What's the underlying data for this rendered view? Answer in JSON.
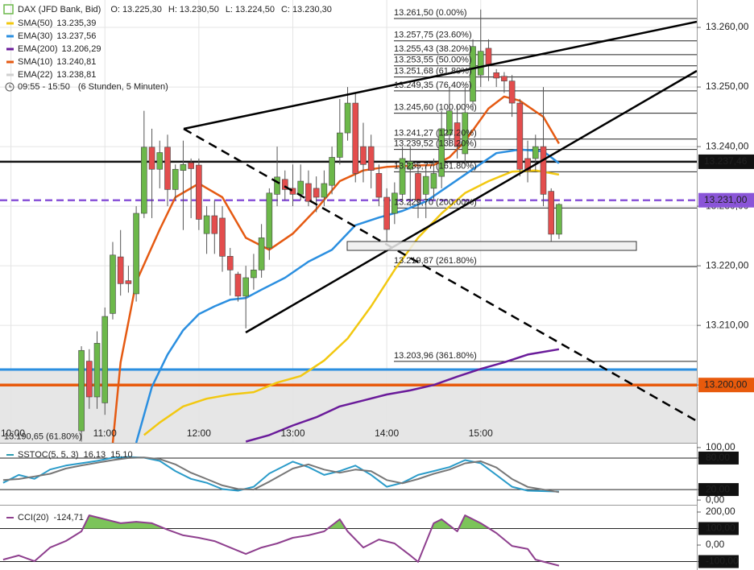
{
  "chart_data": [
    {
      "type": "candlestick",
      "title": "DAX (JFD Bank, Bid)",
      "quote": [
        {
          "name": "O:",
          "value": 13225.3,
          "label": "13.225,30"
        },
        {
          "name": "H:",
          "value": 13230.5,
          "label": "13.230,50"
        },
        {
          "name": "L:",
          "value": 13224.5,
          "label": "13.224,50"
        },
        {
          "name": "C:",
          "value": 13230.3,
          "label": "13.230,30"
        }
      ],
      "period": "09:55 - 15:50",
      "period_note": "(6 Stunden, 5 Minuten)",
      "up_color": "#6cb84a",
      "down_color": "#e34d4d",
      "xlim": [
        "09:53",
        "17:18"
      ],
      "xticks": [
        "10:00",
        "11:00",
        "12:00",
        "13:00",
        "14:00",
        "15:00"
      ],
      "ylim": [
        13190.3,
        13264.6
      ],
      "yticks": [
        {
          "value": 13200,
          "label": "13.200,00"
        },
        {
          "value": 13210,
          "label": "13.210,00"
        },
        {
          "value": 13220,
          "label": "13.220,00"
        },
        {
          "value": 13230,
          "label": "13.230,00"
        },
        {
          "value": 13240,
          "label": "13.240,00"
        },
        {
          "value": 13250,
          "label": "13.250,00"
        },
        {
          "value": 13260,
          "label": "13.260,00"
        }
      ],
      "grid": true,
      "x": [
        "10:45",
        "10:50",
        "10:55",
        "11:00",
        "11:05",
        "11:10",
        "11:15",
        "11:20",
        "11:25",
        "11:30",
        "11:35",
        "11:40",
        "11:45",
        "11:50",
        "11:55",
        "12:00",
        "12:05",
        "12:10",
        "12:15",
        "12:20",
        "12:25",
        "12:30",
        "12:35",
        "12:40",
        "12:45",
        "12:50",
        "12:55",
        "13:00",
        "13:05",
        "13:10",
        "13:15",
        "13:20",
        "13:25",
        "13:30",
        "13:35",
        "13:40",
        "13:45",
        "13:50",
        "13:55",
        "14:00",
        "14:05",
        "14:10",
        "14:15",
        "14:20",
        "14:25",
        "14:30",
        "14:35",
        "14:40",
        "14:45",
        "14:50",
        "14:55",
        "15:00",
        "15:05",
        "15:10",
        "15:15",
        "15:20",
        "15:25",
        "15:30",
        "15:35",
        "15:40",
        "15:45",
        "15:50"
      ],
      "open": [
        13192.3,
        13204,
        13198,
        13197,
        13212,
        13221.5,
        13217.5,
        13215.3,
        13228.8,
        13239.9,
        13236.2,
        13239.9,
        13232.8,
        13236,
        13237.3,
        13236.9,
        13225.4,
        13228.4,
        13228,
        13221.6,
        13218.6,
        13214.9,
        13218,
        13219.3,
        13223,
        13232,
        13234.5,
        13233,
        13232,
        13233.8,
        13233,
        13231.5,
        13233.5,
        13238.2,
        13242.3,
        13247.3,
        13240,
        13240,
        13235.5,
        13231.5,
        13228.8,
        13232,
        13236.2,
        13235.5,
        13232,
        13233,
        13235,
        13242,
        13244,
        13238.8,
        13247.6,
        13252,
        13256.5,
        13252.4,
        13251.8,
        13251,
        13247.3,
        13238,
        13238,
        13240,
        13232.5,
        13225.3
      ],
      "high": [
        13206.5,
        13206,
        13209,
        13213,
        13224,
        13226,
        13220,
        13230,
        13246,
        13243,
        13241,
        13242,
        13237,
        13241,
        13238,
        13238,
        13230,
        13231,
        13230,
        13223,
        13219,
        13220,
        13222,
        13227,
        13233,
        13240,
        13236,
        13237,
        13237,
        13236,
        13235,
        13236,
        13240,
        13248,
        13250,
        13249,
        13244,
        13242,
        13237,
        13233,
        13234,
        13240,
        13240,
        13237,
        13237,
        13238,
        13246,
        13250,
        13247,
        13250,
        13258,
        13263,
        13258,
        13253,
        13252.5,
        13252,
        13248,
        13241,
        13242,
        13250,
        13233,
        13230.5
      ],
      "low": [
        13190.5,
        13196,
        13196,
        13195,
        13211,
        13215,
        13215.5,
        13214,
        13228,
        13228,
        13233,
        13230,
        13231,
        13226,
        13228,
        13226,
        13222,
        13222,
        13219,
        13215,
        13214,
        13209.5,
        13216,
        13218,
        13221,
        13230,
        13231,
        13230,
        13231,
        13230,
        13229,
        13230,
        13232,
        13237,
        13241,
        13234,
        13234,
        13233,
        13230,
        13224,
        13227,
        13231,
        13230,
        13228,
        13228,
        13231,
        13233,
        13240,
        13238,
        13237,
        13246,
        13250,
        13251,
        13250,
        13249,
        13245,
        13235,
        13234,
        13236,
        13230,
        13224,
        13224.5
      ],
      "close": [
        13205.8,
        13198,
        13207,
        13211.5,
        13221.8,
        13217,
        13217,
        13228.8,
        13239.9,
        13236.2,
        13239,
        13232.8,
        13236.2,
        13237,
        13236.3,
        13227.8,
        13228.4,
        13225.4,
        13221.6,
        13219.3,
        13214.9,
        13218,
        13219.3,
        13224.7,
        13232.2,
        13234.9,
        13232.8,
        13232,
        13234.2,
        13230.8,
        13231.5,
        13233.8,
        13238.2,
        13242.3,
        13247.3,
        13235.5,
        13237,
        13236,
        13231.5,
        13226.1,
        13232.2,
        13238,
        13237.5,
        13231,
        13235,
        13235.5,
        13243,
        13246,
        13240,
        13245.7,
        13256.8,
        13256,
        13253.8,
        13251.5,
        13251,
        13247.3,
        13236.2,
        13236,
        13240,
        13232,
        13225.3,
        13230.3
      ],
      "series": [
        {
          "name": "SMA(50)",
          "color": "#f2c811",
          "value": 13235.39,
          "label": "13.235,39",
          "x": [
            "11:25",
            "11:35",
            "11:50",
            "12:05",
            "12:20",
            "12:35",
            "12:50",
            "13:05",
            "13:20",
            "13:35",
            "13:50",
            "14:05",
            "14:20",
            "14:35",
            "14:50",
            "15:05",
            "15:20",
            "15:35",
            "15:50"
          ],
          "values": [
            13191.6,
            13193.7,
            13196.4,
            13197.7,
            13198.4,
            13198.8,
            13200.4,
            13201.5,
            13204.1,
            13207.8,
            13213.2,
            13219.3,
            13224.7,
            13228.8,
            13232.2,
            13234.2,
            13235.8,
            13236,
            13235.3
          ]
        },
        {
          "name": "EMA(30)",
          "color": "#2b8fe0",
          "value": 13237.56,
          "label": "13.237,56",
          "x": [
            "11:20",
            "11:30",
            "11:40",
            "11:50",
            "12:00",
            "12:10",
            "12:20",
            "12:30",
            "12:40",
            "12:55",
            "13:10",
            "13:25",
            "13:40",
            "13:55",
            "14:10",
            "14:25",
            "14:40",
            "14:55",
            "15:10",
            "15:25",
            "15:40",
            "15:50"
          ],
          "values": [
            13190.3,
            13199.7,
            13205.1,
            13209.2,
            13211.9,
            13213.2,
            13214.3,
            13214.6,
            13216,
            13218,
            13220.7,
            13222.7,
            13226.8,
            13228.1,
            13229.2,
            13230.8,
            13233.5,
            13236.2,
            13238.9,
            13239.5,
            13239.2,
            13237.2
          ]
        },
        {
          "name": "EMA(200)",
          "color": "#6a1b9a",
          "value": 13206.29,
          "label": "13.206,29",
          "x": [
            "12:30",
            "12:45",
            "13:00",
            "13:15",
            "13:30",
            "13:45",
            "14:00",
            "14:15",
            "14:30",
            "14:45",
            "15:00",
            "15:15",
            "15:30",
            "15:50"
          ],
          "values": [
            13190.5,
            13191.6,
            13193.2,
            13194.6,
            13196.4,
            13197.4,
            13198.4,
            13199.1,
            13200,
            13201.4,
            13202.7,
            13203.8,
            13205.1,
            13206
          ]
        },
        {
          "name": "SMA(10)",
          "color": "#e55a12",
          "value": 13240.81,
          "label": "13.240,81",
          "x": [
            "11:05",
            "11:10",
            "11:20",
            "11:35",
            "11:45",
            "12:00",
            "12:15",
            "12:30",
            "12:45",
            "13:00",
            "13:15",
            "13:30",
            "13:45",
            "14:00",
            "14:15",
            "14:30",
            "14:40",
            "14:50",
            "15:05",
            "15:15",
            "15:25",
            "15:40",
            "15:50"
          ],
          "values": [
            13190.3,
            13203.8,
            13217.3,
            13226.1,
            13231.5,
            13233.8,
            13231.5,
            13224.7,
            13222.7,
            13225.4,
            13229.5,
            13234.2,
            13236,
            13236.6,
            13236.8,
            13236.9,
            13238.2,
            13240.9,
            13246.4,
            13248.4,
            13247.7,
            13245,
            13240.5
          ]
        },
        {
          "name": "EMA(22)",
          "color": "#d0d0d0",
          "value": 13238.81,
          "label": "13.238,81"
        }
      ],
      "levels": [
        {
          "value": 13202.6,
          "color": "#2b8fe0",
          "width": 3,
          "shade_below": true
        },
        {
          "value": 13200,
          "label": "13.200,00",
          "color": "#e85a0c",
          "width": 3.5
        },
        {
          "value": 13231,
          "label": "13.231,00",
          "color": "#8a55d8",
          "width": 2.5,
          "dashed": true
        },
        {
          "value": 13237.46,
          "label": "13.237,46",
          "color": "#111111",
          "width": 2.5
        }
      ],
      "fibs": [
        {
          "value": 13261.5,
          "label": "13.261,50 (0.00%)"
        },
        {
          "value": 13257.75,
          "label": "13.257,75 (23.60%)"
        },
        {
          "value": 13255.43,
          "label": "13.255,43 (38.20%)"
        },
        {
          "value": 13253.55,
          "label": "13.253,55 (50.00%)"
        },
        {
          "value": 13251.68,
          "label": "13.251,68 (61.80%)"
        },
        {
          "value": 13249.35,
          "label": "13.249,35 (76.40%)"
        },
        {
          "value": 13245.6,
          "label": "13.245,60 (100.00%)"
        },
        {
          "value": 13241.27,
          "label": "13.241,27 (127.20%)"
        },
        {
          "value": 13239.52,
          "label": "13.239,52 (138.20%)"
        },
        {
          "value": 13235.77,
          "label": "13.235,77 (161.80%)"
        },
        {
          "value": 13229.7,
          "label": "13.229,70 (200.00%)"
        },
        {
          "value": 13219.87,
          "label": "13.219,87 (261.80%)"
        },
        {
          "value": 13203.96,
          "label": "13.203,96 (361.80%)"
        }
      ],
      "fib_left": {
        "value": 13190.65,
        "label": "13.190,65 (61.80%)"
      }
    },
    {
      "type": "line",
      "title": "SSTOC(5, 5, 3)",
      "title_color": "#2a9bb0",
      "xlim": [
        "09:53",
        "17:18"
      ],
      "ylim": [
        -9,
        107.5
      ],
      "yticks": [
        {
          "value": 100,
          "label": "100,00"
        },
        {
          "value": 80,
          "label": "80,00",
          "boxed": true
        },
        {
          "value": 20,
          "label": "20,00",
          "boxed": true
        },
        {
          "value": 0,
          "label": "0,00"
        }
      ],
      "series": [
        {
          "color": "#2a9bc9",
          "value": 16.13,
          "label": "16,13",
          "x": [
            "09:55",
            "10:05",
            "10:15",
            "10:25",
            "10:35",
            "10:45",
            "10:55",
            "11:05",
            "11:15",
            "11:25",
            "11:35",
            "11:45",
            "11:55",
            "12:05",
            "12:15",
            "12:25",
            "12:35",
            "12:45",
            "13:00",
            "13:10",
            "13:20",
            "13:30",
            "13:40",
            "13:50",
            "14:00",
            "14:10",
            "14:20",
            "14:30",
            "14:40",
            "14:50",
            "15:00",
            "15:10",
            "15:20",
            "15:30",
            "15:50"
          ],
          "values": [
            32.8,
            47.8,
            40.3,
            58.2,
            65.7,
            70.1,
            74.6,
            80.6,
            82.1,
            80.6,
            74.6,
            55.2,
            40.3,
            32.8,
            20.9,
            17.9,
            25.4,
            50.7,
            73.1,
            62.7,
            47.8,
            55.2,
            65.7,
            47.8,
            25.4,
            32.8,
            47.8,
            55.2,
            62.7,
            76.1,
            70.1,
            47.8,
            25.4,
            17.9,
            16.13
          ]
        },
        {
          "color": "#777777",
          "value": 15.1,
          "label": "15,10",
          "x": [
            "09:55",
            "10:05",
            "10:15",
            "10:25",
            "10:35",
            "10:45",
            "10:55",
            "11:05",
            "11:15",
            "11:25",
            "11:35",
            "11:45",
            "11:55",
            "12:05",
            "12:15",
            "12:25",
            "12:35",
            "12:45",
            "13:00",
            "13:10",
            "13:20",
            "13:30",
            "13:40",
            "13:50",
            "14:00",
            "14:10",
            "14:20",
            "14:30",
            "14:40",
            "14:50",
            "15:00",
            "15:10",
            "15:20",
            "15:30",
            "15:50"
          ],
          "values": [
            38,
            40,
            45,
            50,
            60,
            66,
            71,
            76,
            80,
            81,
            78,
            68,
            52,
            40,
            28,
            21,
            20,
            35,
            60,
            68,
            58,
            52,
            58,
            55,
            38,
            32,
            40,
            50,
            58,
            70,
            74,
            62,
            40,
            25,
            15.1
          ]
        }
      ]
    },
    {
      "type": "line",
      "title": "CCI(20)",
      "title_color": "#8e3f8e",
      "xlim": [
        "09:53",
        "17:18"
      ],
      "ylim": [
        -151,
        239
      ],
      "yticks": [
        {
          "value": 200,
          "label": "200,00"
        },
        {
          "value": 100,
          "label": "100,00",
          "boxed": true
        },
        {
          "value": 0,
          "label": "0,00"
        },
        {
          "value": -100,
          "label": "-100,00",
          "boxed": true
        }
      ],
      "fill_above": 100,
      "fill_color": "#7cc45a",
      "series": [
        {
          "color": "#8e3f8e",
          "value": -124.71,
          "label": "-124,71",
          "x": [
            "09:55",
            "10:05",
            "10:15",
            "10:25",
            "10:35",
            "10:45",
            "10:50",
            "11:00",
            "11:10",
            "11:20",
            "11:30",
            "11:40",
            "11:50",
            "12:00",
            "12:10",
            "12:20",
            "12:30",
            "12:40",
            "12:50",
            "13:00",
            "13:10",
            "13:20",
            "13:30",
            "13:35",
            "13:45",
            "13:55",
            "14:05",
            "14:15",
            "14:20",
            "14:30",
            "14:35",
            "14:45",
            "14:50",
            "15:00",
            "15:10",
            "15:20",
            "15:30",
            "15:35",
            "15:50"
          ],
          "values": [
            -88,
            -63,
            -98,
            -15,
            24,
            83,
            180,
            156,
            132,
            141,
            132,
            93,
            59,
            44,
            24,
            -15,
            -54,
            -15,
            10,
            44,
            59,
            83,
            156,
            83,
            -15,
            34,
            10,
            -63,
            -102,
            132,
            156,
            83,
            180,
            132,
            73,
            -5,
            -24,
            -88,
            -124.71
          ]
        }
      ]
    }
  ]
}
